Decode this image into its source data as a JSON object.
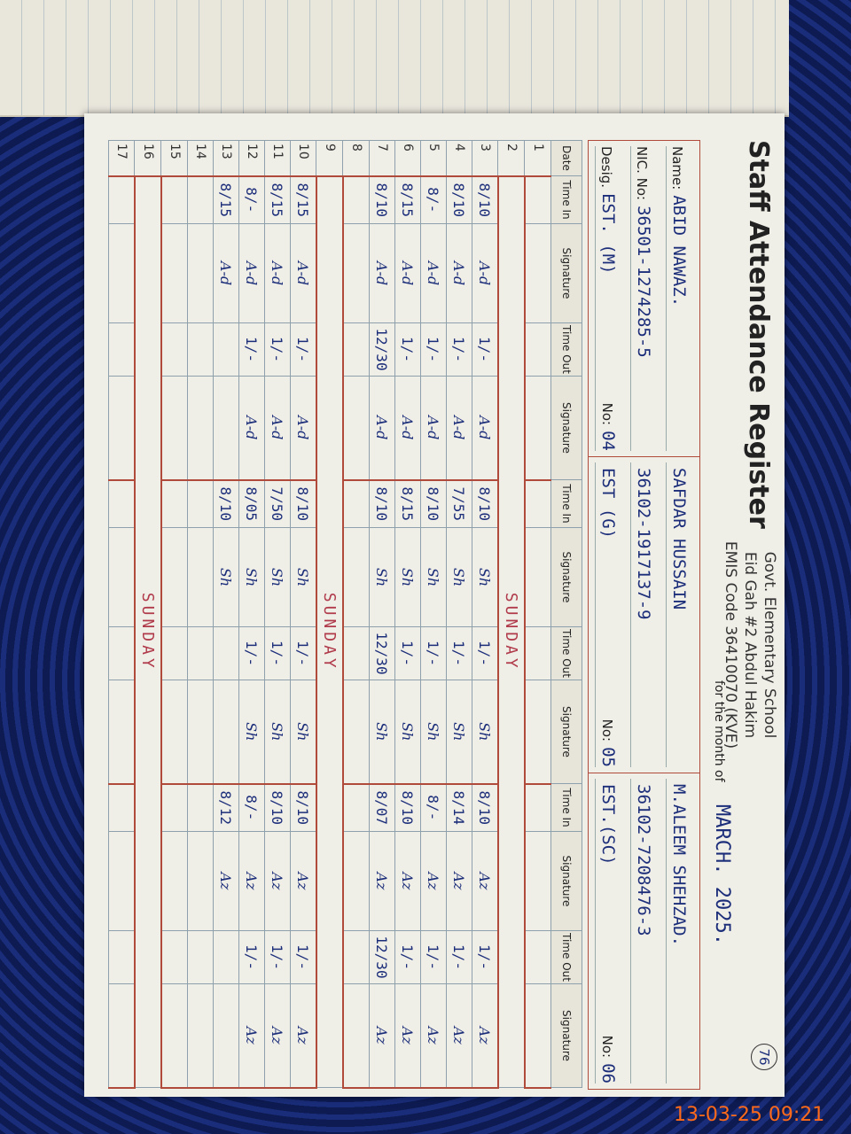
{
  "header": {
    "school": "Govt. Elementary School",
    "location": "Eid Gah #2 Abdul Hakim",
    "emis": "EMIS Code 36410070 (KVE)",
    "title": "Staff Attendance Register",
    "month_label": "for the month of",
    "month": "MARCH. 2025.",
    "page_no": "76"
  },
  "labels": {
    "name": "Name:",
    "nic": "NIC. No:",
    "desig": "Desig.",
    "no": "No:"
  },
  "columns": [
    "Date",
    "Time In",
    "Signature",
    "Time Out",
    "Signature"
  ],
  "staff": [
    {
      "name": "ABID NAWAZ.",
      "nic": "36501-1274285-5",
      "desig": "EST. (M)",
      "no": "04",
      "sign": "A-d"
    },
    {
      "name": "SAFDAR HUSSAIN",
      "nic": "36102-1917137-9",
      "desig": "EST (G)",
      "no": "05",
      "sign": "Sh"
    },
    {
      "name": "M.ALEEM SHEHZAD.",
      "nic": "36102-7208476-3",
      "desig": "EST.(SC)",
      "no": "06",
      "sign": "Az"
    }
  ],
  "rows": [
    {
      "date": "1"
    },
    {
      "date": "2",
      "note": "SUNDAY"
    },
    {
      "date": "3",
      "entries": [
        [
          "8/10",
          "1/-"
        ],
        [
          "8/10",
          "1/-"
        ],
        [
          "8/10",
          "1/-"
        ]
      ]
    },
    {
      "date": "4",
      "entries": [
        [
          "8/10",
          "1/-"
        ],
        [
          "7/55",
          "1/-"
        ],
        [
          "8/14",
          "1/-"
        ]
      ]
    },
    {
      "date": "5",
      "entries": [
        [
          "8/-",
          "1/-"
        ],
        [
          "8/10",
          "1/-"
        ],
        [
          "8/-",
          "1/-"
        ]
      ]
    },
    {
      "date": "6",
      "entries": [
        [
          "8/15",
          "1/-"
        ],
        [
          "8/15",
          "1/-"
        ],
        [
          "8/10",
          "1/-"
        ]
      ]
    },
    {
      "date": "7",
      "entries": [
        [
          "8/10",
          "12/30"
        ],
        [
          "8/10",
          "12/30"
        ],
        [
          "8/07",
          "12/30"
        ]
      ]
    },
    {
      "date": "8"
    },
    {
      "date": "9",
      "note": "SUNDAY"
    },
    {
      "date": "10",
      "entries": [
        [
          "8/15",
          "1/-"
        ],
        [
          "8/10",
          "1/-"
        ],
        [
          "8/10",
          "1/-"
        ]
      ]
    },
    {
      "date": "11",
      "entries": [
        [
          "8/15",
          "1/-"
        ],
        [
          "7/50",
          "1/-"
        ],
        [
          "8/10",
          "1/-"
        ]
      ]
    },
    {
      "date": "12",
      "entries": [
        [
          "8/-",
          "1/-"
        ],
        [
          "8/05",
          "1/-"
        ],
        [
          "8/-",
          "1/-"
        ]
      ]
    },
    {
      "date": "13",
      "entries": [
        [
          "8/15",
          null
        ],
        [
          "8/10",
          null
        ],
        [
          "8/12",
          null
        ]
      ]
    },
    {
      "date": "14"
    },
    {
      "date": "15"
    },
    {
      "date": "16",
      "note": "SUNDAY"
    },
    {
      "date": "17"
    }
  ],
  "timestamp": "13-03-25 09:21"
}
